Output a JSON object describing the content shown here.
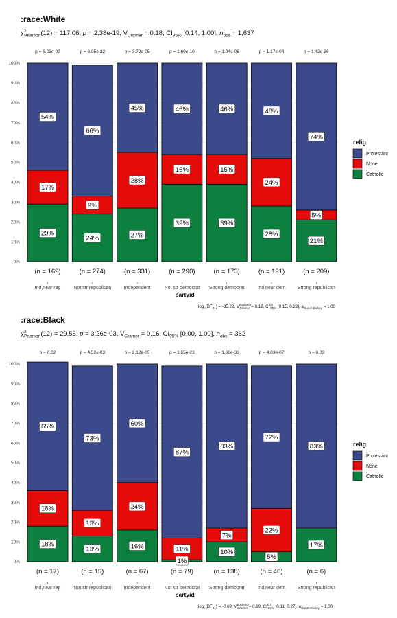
{
  "colors": {
    "Protestant": "#3c4a8c",
    "None": "#e60b0b",
    "Catholic": "#0d8040"
  },
  "panels": [
    {
      "title": ":race:White",
      "subtitle_parts": [
        "χ",
        "2",
        "Pearson",
        "(12) = 117.06, ",
        "p",
        " = 2.38e-19, ",
        "V",
        "Cramer",
        " = 0.18, CI",
        "95%",
        " [0.14, 1.00], ",
        "n",
        "obs",
        " = 1,637"
      ],
      "caption_parts": [
        "log",
        "e",
        "(BF",
        "01",
        ") = -35.22, ",
        "V",
        "posterior",
        "Cramer",
        " = 0.18, CI",
        "ETI",
        "95%",
        " [0.15, 0.22], a",
        "Gunel-Dickey",
        " = 1.00"
      ],
      "xlabel": "partyid",
      "legend": {
        "title": "relig",
        "items": [
          "Protestant",
          "None",
          "Catholic"
        ]
      }
    },
    {
      "title": ":race:Black",
      "subtitle_parts": [
        "χ",
        "2",
        "Pearson",
        "(12) = 29.55, ",
        "p",
        " = 3.26e-03, ",
        "V",
        "Cramer",
        " = 0.16, CI",
        "95%",
        " [0.00, 1.00], ",
        "n",
        "obs",
        " = 362"
      ],
      "caption_parts": [
        "log",
        "e",
        "(BF",
        "01",
        ") = -0.69, ",
        "V",
        "posterior",
        "Cramer",
        " = 0.19, CI",
        "ETI",
        "95%",
        " [0.11, 0.27], a",
        "Gunel-Dickey",
        " = 1.00"
      ],
      "xlabel": "partyid",
      "legend": {
        "title": "relig",
        "items": [
          "Protestant",
          "None",
          "Catholic"
        ]
      }
    }
  ],
  "chart_data": [
    {
      "type": "bar",
      "stacked": true,
      "title": ":race:White",
      "xlabel": "partyid",
      "ylabel": "",
      "ylim": [
        0,
        100
      ],
      "yticks": [
        "0%",
        "10%",
        "20%",
        "30%",
        "40%",
        "50%",
        "60%",
        "70%",
        "80%",
        "90%",
        "100%"
      ],
      "categories": [
        "Ind,near rep",
        "Not str republican",
        "Independent",
        "Not str democrat",
        "Strong democrat",
        "Ind,near dem",
        "Strong republican"
      ],
      "counts": [
        "(n = 169)",
        "(n = 274)",
        "(n = 331)",
        "(n = 290)",
        "(n = 173)",
        "(n = 191)",
        "(n = 209)"
      ],
      "pvalues": [
        "p = 6.23e-09",
        "p = 6.05e-32",
        "p = 3.72e-05",
        "p = 1.60e-10",
        "p = 1.04e-06",
        "p = 1.17e-04",
        "p = 1.42e-36"
      ],
      "series": [
        {
          "name": "Catholic",
          "values": [
            29,
            24,
            27,
            39,
            39,
            28,
            21
          ]
        },
        {
          "name": "None",
          "values": [
            17,
            9,
            28,
            15,
            15,
            24,
            5
          ]
        },
        {
          "name": "Protestant",
          "values": [
            54,
            66,
            45,
            46,
            46,
            48,
            74
          ]
        }
      ],
      "legend_position": "right"
    },
    {
      "type": "bar",
      "stacked": true,
      "title": ":race:Black",
      "xlabel": "partyid",
      "ylabel": "",
      "ylim": [
        0,
        100
      ],
      "yticks": [
        "0%",
        "10%",
        "20%",
        "30%",
        "40%",
        "50%",
        "60%",
        "70%",
        "80%",
        "90%",
        "100%"
      ],
      "categories": [
        "Ind,near rep",
        "Not str republican",
        "Independent",
        "Not str democrat",
        "Strong democrat",
        "Ind,near dem",
        "Strong republican"
      ],
      "counts": [
        "(n = 17)",
        "(n = 15)",
        "(n = 67)",
        "(n = 79)",
        "(n = 138)",
        "(n = 40)",
        "(n = 6)"
      ],
      "pvalues": [
        "p = 0.02",
        "p = 4.52e-03",
        "p = 2.12e-05",
        "p = 1.65e-23",
        "p = 1.66e-33",
        "p = 4.03e-07",
        "p = 0.03"
      ],
      "series": [
        {
          "name": "Catholic",
          "values": [
            18,
            13,
            16,
            1,
            10,
            5,
            17
          ]
        },
        {
          "name": "None",
          "values": [
            18,
            13,
            24,
            11,
            7,
            22,
            0
          ]
        },
        {
          "name": "Protestant",
          "values": [
            65,
            73,
            60,
            87,
            83,
            72,
            83
          ]
        }
      ],
      "legend_position": "right"
    }
  ]
}
